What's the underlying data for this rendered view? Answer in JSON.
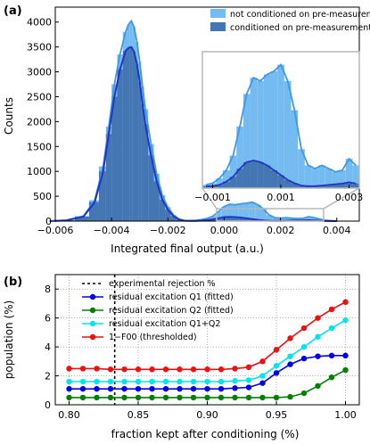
{
  "chart_data": [
    {
      "panel_label": "(a)",
      "type": "bar",
      "xlabel": "Integrated final output (a.u.)",
      "ylabel": "Counts",
      "xlim": [
        -0.006,
        0.0048
      ],
      "ylim": [
        0,
        4300
      ],
      "xticks": [
        -0.006,
        -0.004,
        -0.002,
        0.0,
        0.002,
        0.004
      ],
      "xtick_labels": [
        "−0.006",
        "−0.004",
        "−0.002",
        "0.000",
        "0.002",
        "0.004"
      ],
      "yticks": [
        0,
        500,
        1000,
        1500,
        2000,
        2500,
        3000,
        3500,
        4000
      ],
      "ytick_labels": [
        "0",
        "500",
        "1000",
        "1500",
        "2000",
        "2500",
        "3000",
        "3500",
        "4000"
      ],
      "legend": {
        "placement": "top-right",
        "entries": [
          "not conditioned on pre-measurement",
          "conditioned on pre-measurement"
        ]
      },
      "colors": {
        "light_bar": "#74bbf2",
        "light_line": "#3d98e8",
        "dark_bar": "#4476b3",
        "dark_line": "#1f35c4"
      },
      "series": [
        {
          "name": "not conditioned on pre-measurement",
          "x": [
            -0.0062,
            -0.0056,
            -0.005,
            -0.0046,
            -0.0043,
            -0.0041,
            -0.0039,
            -0.0037,
            -0.0035,
            -0.0034,
            -0.0033,
            -0.0032,
            -0.0031,
            -0.003,
            -0.0029,
            -0.0028,
            -0.0026,
            -0.0024,
            -0.0022,
            -0.002,
            -0.0018,
            -0.0016,
            -0.0014,
            -0.0012,
            -0.001,
            -0.0008,
            -0.0006,
            -0.0004,
            -0.0002,
            0.0,
            0.0002,
            0.0004,
            0.0006,
            0.0008,
            0.001,
            0.0012,
            0.0014,
            0.0016,
            0.0018,
            0.002,
            0.0022,
            0.0024,
            0.0026,
            0.0028,
            0.003,
            0.0032,
            0.0034,
            0.0036,
            0.004
          ],
          "values": [
            0,
            20,
            100,
            420,
            1100,
            1900,
            2750,
            3350,
            3800,
            3950,
            4020,
            3900,
            3600,
            3200,
            2700,
            2250,
            1550,
            950,
            520,
            280,
            120,
            40,
            10,
            10,
            15,
            30,
            55,
            100,
            190,
            290,
            340,
            330,
            350,
            360,
            380,
            330,
            240,
            120,
            70,
            60,
            70,
            60,
            50,
            55,
            90,
            70,
            40,
            15,
            0
          ]
        },
        {
          "name": "conditioned on pre-measurement",
          "x": [
            -0.0062,
            -0.0056,
            -0.005,
            -0.0046,
            -0.0043,
            -0.0041,
            -0.0039,
            -0.0037,
            -0.0035,
            -0.0034,
            -0.0033,
            -0.0032,
            -0.0031,
            -0.003,
            -0.0029,
            -0.0028,
            -0.0026,
            -0.0024,
            -0.0022,
            -0.002,
            -0.0018,
            -0.0016,
            -0.0014,
            -0.0012,
            -0.001,
            -0.0008,
            -0.0006,
            -0.0004,
            -0.0002,
            0.0,
            0.0002,
            0.0004,
            0.0006,
            0.0008,
            0.001,
            0.0012,
            0.0014,
            0.0016,
            0.0018,
            0.002,
            0.0022,
            0.0024,
            0.0026,
            0.0028,
            0.003,
            0.0032,
            0.0034,
            0.0036,
            0.004
          ],
          "values": [
            0,
            15,
            90,
            380,
            1000,
            1750,
            2500,
            3050,
            3420,
            3480,
            3500,
            3400,
            3150,
            2800,
            2350,
            1950,
            1320,
            800,
            430,
            230,
            100,
            30,
            8,
            5,
            6,
            10,
            20,
            35,
            60,
            80,
            85,
            80,
            70,
            55,
            40,
            25,
            15,
            8,
            6,
            6,
            8,
            10,
            12,
            14,
            18,
            14,
            8,
            3,
            0
          ]
        }
      ],
      "inset": {
        "xlim": [
          -0.0013,
          0.0033
        ],
        "ylim": [
          0,
          420
        ],
        "xticks": [
          -0.001,
          0.001,
          0.003
        ],
        "xtick_labels": [
          "−0.001",
          "0.001",
          "0.003"
        ]
      }
    },
    {
      "panel_label": "(b)",
      "type": "line",
      "xlabel": "fraction kept after conditioning (%)",
      "ylabel": "population (%)",
      "xlim": [
        0.79,
        1.01
      ],
      "ylim": [
        0,
        9
      ],
      "xticks": [
        0.8,
        0.85,
        0.9,
        0.95,
        1.0
      ],
      "xtick_labels": [
        "0.80",
        "0.85",
        "0.90",
        "0.95",
        "1.00"
      ],
      "yticks": [
        0,
        2,
        4,
        6,
        8
      ],
      "ytick_labels": [
        "0",
        "2",
        "4",
        "6",
        "8"
      ],
      "grid": true,
      "vline": {
        "x": 0.833,
        "label": "experimental rejection %"
      },
      "legend": {
        "placement": "top-left",
        "entries": [
          "experimental rejection %",
          "residual excitation Q1 (fitted)",
          "residual excitation Q2 (fitted)",
          "residual excitation Q1+Q2",
          "1−F00 (thresholded)"
        ]
      },
      "x": [
        0.8,
        0.81,
        0.82,
        0.83,
        0.84,
        0.85,
        0.86,
        0.87,
        0.88,
        0.89,
        0.9,
        0.91,
        0.92,
        0.93,
        0.94,
        0.95,
        0.96,
        0.97,
        0.98,
        0.99,
        1.0
      ],
      "series": [
        {
          "name": "residual excitation Q1 (fitted)",
          "color": "#0000ee",
          "values": [
            1.1,
            1.1,
            1.1,
            1.1,
            1.1,
            1.1,
            1.1,
            1.1,
            1.1,
            1.1,
            1.1,
            1.1,
            1.15,
            1.2,
            1.5,
            2.2,
            2.8,
            3.2,
            3.35,
            3.4,
            3.4
          ]
        },
        {
          "name": "residual excitation Q2 (fitted)",
          "color": "#008000",
          "values": [
            0.5,
            0.5,
            0.5,
            0.5,
            0.5,
            0.5,
            0.5,
            0.5,
            0.5,
            0.5,
            0.5,
            0.5,
            0.5,
            0.5,
            0.5,
            0.5,
            0.55,
            0.8,
            1.3,
            1.9,
            2.4
          ]
        },
        {
          "name": "residual excitation Q1+Q2",
          "color": "#00e5ee",
          "values": [
            1.6,
            1.6,
            1.6,
            1.6,
            1.6,
            1.6,
            1.6,
            1.6,
            1.6,
            1.6,
            1.6,
            1.6,
            1.65,
            1.7,
            2.0,
            2.7,
            3.35,
            4.0,
            4.7,
            5.3,
            5.85
          ]
        },
        {
          "name": "1−F00 (thresholded)",
          "color": "#ee1111",
          "values": [
            2.5,
            2.5,
            2.5,
            2.45,
            2.45,
            2.45,
            2.45,
            2.45,
            2.45,
            2.45,
            2.45,
            2.45,
            2.5,
            2.6,
            3.0,
            3.8,
            4.6,
            5.3,
            6.0,
            6.6,
            7.1
          ]
        }
      ]
    }
  ]
}
